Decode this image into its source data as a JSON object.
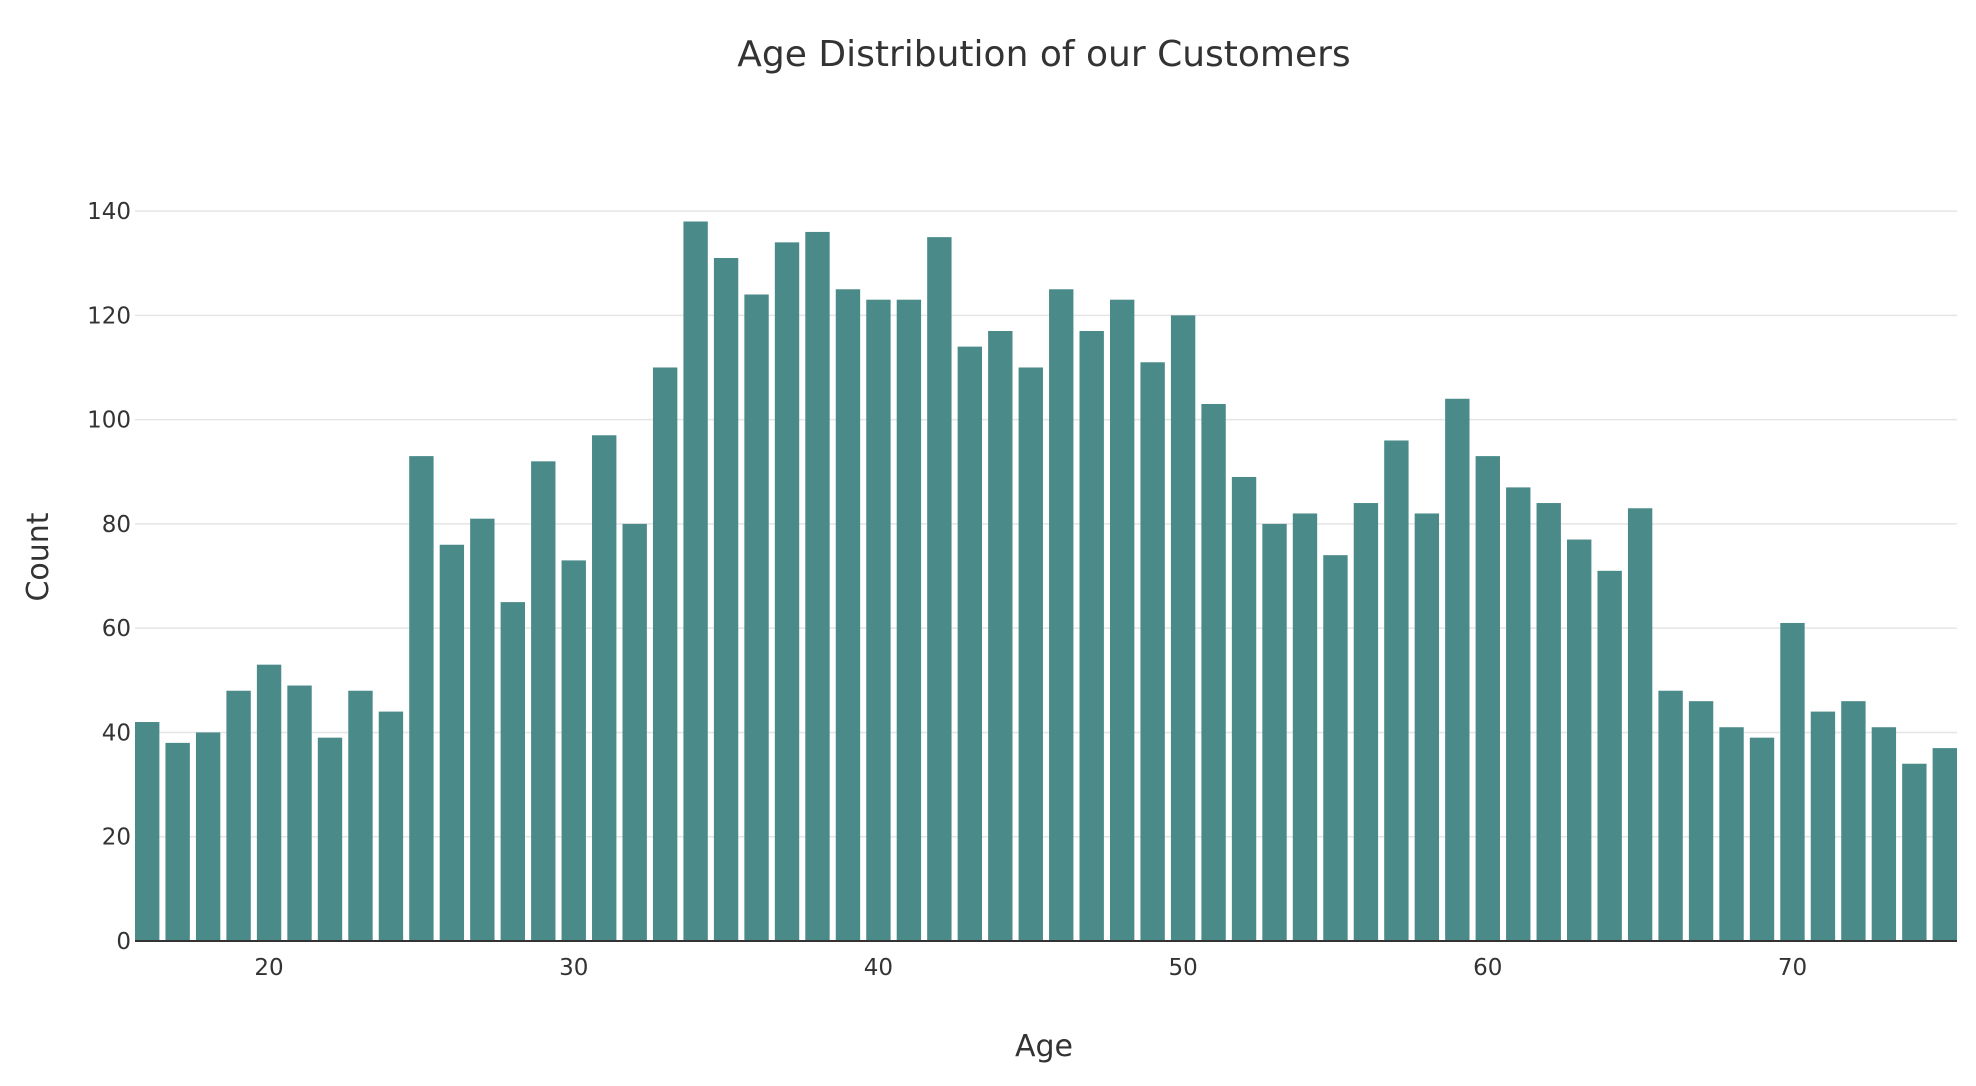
{
  "chart_data": {
    "type": "bar",
    "title": "Age Distribution of our Customers",
    "xlabel": "Age",
    "ylabel": "Count",
    "x": [
      16,
      17,
      18,
      19,
      20,
      21,
      22,
      23,
      24,
      25,
      26,
      27,
      28,
      29,
      30,
      31,
      32,
      33,
      34,
      35,
      36,
      37,
      38,
      39,
      40,
      41,
      42,
      43,
      44,
      45,
      46,
      47,
      48,
      49,
      50,
      51,
      52,
      53,
      54,
      55,
      56,
      57,
      58,
      59,
      60,
      61,
      62,
      63,
      64,
      65,
      66,
      67,
      68,
      69,
      70,
      71,
      72,
      73,
      74,
      75
    ],
    "values": [
      42,
      38,
      40,
      48,
      53,
      49,
      39,
      48,
      44,
      93,
      76,
      81,
      65,
      92,
      73,
      97,
      80,
      110,
      138,
      131,
      124,
      134,
      136,
      125,
      123,
      123,
      135,
      114,
      117,
      110,
      125,
      117,
      123,
      111,
      120,
      103,
      89,
      80,
      82,
      74,
      84,
      96,
      82,
      104,
      93,
      87,
      84,
      77,
      71,
      83,
      48,
      46,
      41,
      39,
      61,
      44,
      46,
      41,
      34,
      37
    ],
    "xlim": [
      15.6,
      75.4
    ],
    "ylim": [
      0,
      145
    ],
    "x_ticks": [
      20,
      30,
      40,
      50,
      60,
      70
    ],
    "y_ticks": [
      0,
      20,
      40,
      60,
      80,
      100,
      120,
      140
    ],
    "grid": true,
    "bar_color": "#4a8a89"
  }
}
